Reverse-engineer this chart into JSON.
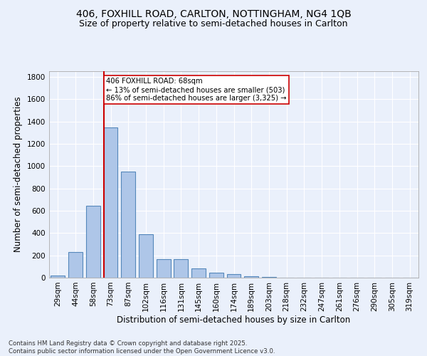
{
  "title": "406, FOXHILL ROAD, CARLTON, NOTTINGHAM, NG4 1QB",
  "subtitle": "Size of property relative to semi-detached houses in Carlton",
  "xlabel": "Distribution of semi-detached houses by size in Carlton",
  "ylabel": "Number of semi-detached properties",
  "categories": [
    "29sqm",
    "44sqm",
    "58sqm",
    "73sqm",
    "87sqm",
    "102sqm",
    "116sqm",
    "131sqm",
    "145sqm",
    "160sqm",
    "174sqm",
    "189sqm",
    "203sqm",
    "218sqm",
    "232sqm",
    "247sqm",
    "261sqm",
    "276sqm",
    "290sqm",
    "305sqm",
    "319sqm"
  ],
  "values": [
    22,
    230,
    645,
    1345,
    950,
    390,
    165,
    165,
    80,
    45,
    30,
    15,
    5,
    0,
    0,
    0,
    0,
    0,
    0,
    0,
    0
  ],
  "bar_color": "#aec6e8",
  "bar_edge_color": "#5588bb",
  "vline_x_idx": 3,
  "vline_color": "#cc0000",
  "annotation_text": "406 FOXHILL ROAD: 68sqm\n← 13% of semi-detached houses are smaller (503)\n86% of semi-detached houses are larger (3,325) →",
  "annotation_box_color": "#ffffff",
  "annotation_box_edge_color": "#cc0000",
  "ylim": [
    0,
    1850
  ],
  "yticks": [
    0,
    200,
    400,
    600,
    800,
    1000,
    1200,
    1400,
    1600,
    1800
  ],
  "bg_color": "#eaf0fb",
  "plot_bg_color": "#eaf0fb",
  "footer": "Contains HM Land Registry data © Crown copyright and database right 2025.\nContains public sector information licensed under the Open Government Licence v3.0.",
  "title_fontsize": 10,
  "subtitle_fontsize": 9,
  "xlabel_fontsize": 8.5,
  "ylabel_fontsize": 8.5,
  "tick_fontsize": 7.5,
  "footer_fontsize": 6.2
}
